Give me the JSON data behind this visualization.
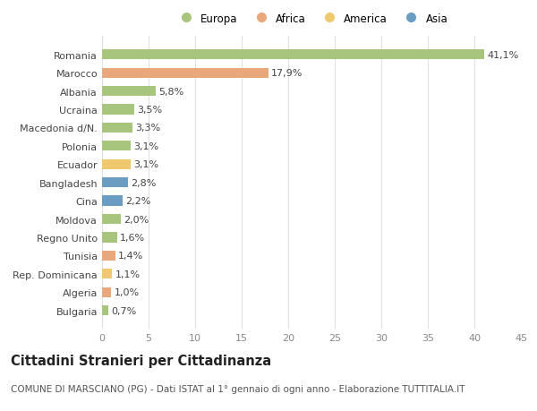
{
  "categories": [
    "Romania",
    "Marocco",
    "Albania",
    "Ucraina",
    "Macedonia d/N.",
    "Polonia",
    "Ecuador",
    "Bangladesh",
    "Cina",
    "Moldova",
    "Regno Unito",
    "Tunisia",
    "Rep. Dominicana",
    "Algeria",
    "Bulgaria"
  ],
  "values": [
    41.1,
    17.9,
    5.8,
    3.5,
    3.3,
    3.1,
    3.1,
    2.8,
    2.2,
    2.0,
    1.6,
    1.4,
    1.1,
    1.0,
    0.7
  ],
  "labels": [
    "41,1%",
    "17,9%",
    "5,8%",
    "3,5%",
    "3,3%",
    "3,1%",
    "3,1%",
    "2,8%",
    "2,2%",
    "2,0%",
    "1,6%",
    "1,4%",
    "1,1%",
    "1,0%",
    "0,7%"
  ],
  "colors": [
    "#a8c57e",
    "#e8a87c",
    "#a8c57e",
    "#a8c57e",
    "#a8c57e",
    "#a8c57e",
    "#f0c96e",
    "#6b9dc2",
    "#6b9dc2",
    "#a8c57e",
    "#a8c57e",
    "#e8a87c",
    "#f0c96e",
    "#e8a87c",
    "#a8c57e"
  ],
  "legend": [
    {
      "label": "Europa",
      "color": "#a8c57e"
    },
    {
      "label": "Africa",
      "color": "#e8a87c"
    },
    {
      "label": "America",
      "color": "#f0c96e"
    },
    {
      "label": "Asia",
      "color": "#6b9dc2"
    }
  ],
  "xlim": [
    0,
    45
  ],
  "xticks": [
    0,
    5,
    10,
    15,
    20,
    25,
    30,
    35,
    40,
    45
  ],
  "title": "Cittadini Stranieri per Cittadinanza",
  "subtitle": "COMUNE DI MARSCIANO (PG) - Dati ISTAT al 1° gennaio di ogni anno - Elaborazione TUTTITALIA.IT",
  "bg_color": "#ffffff",
  "grid_color": "#e0e0e0",
  "bar_height": 0.55,
  "label_fontsize": 8.0,
  "tick_fontsize": 8.0,
  "title_fontsize": 10.5,
  "subtitle_fontsize": 7.5,
  "legend_fontsize": 8.5,
  "legend_marker_size": 9
}
